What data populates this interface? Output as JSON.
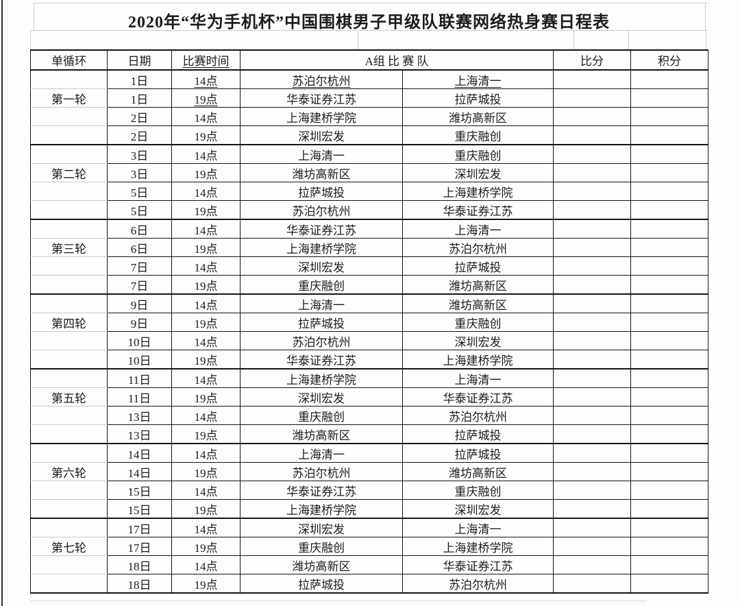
{
  "title": "2020年“华为手机杯”中国围棋男子甲级队联赛网络热身赛日程表",
  "headers": {
    "round": "单循环",
    "date": "日期",
    "time": "比赛时间",
    "group": "A组 比 赛 队",
    "score": "比分",
    "points": "积分"
  },
  "rounds": [
    {
      "name": "第一轮",
      "matches": [
        {
          "date": "1日",
          "time": "14点",
          "team_a": "苏泊尔杭州",
          "team_b": "上海清一",
          "score": "",
          "points": ""
        },
        {
          "date": "1日",
          "time": "19点",
          "team_a": "华泰证券江苏",
          "team_b": "拉萨城投",
          "score": "",
          "points": ""
        },
        {
          "date": "2日",
          "time": "14点",
          "team_a": "上海建桥学院",
          "team_b": "潍坊高新区",
          "score": "",
          "points": ""
        },
        {
          "date": "2日",
          "time": "19点",
          "team_a": "深圳宏发",
          "team_b": "重庆融创",
          "score": "",
          "points": ""
        }
      ]
    },
    {
      "name": "第二轮",
      "matches": [
        {
          "date": "3日",
          "time": "14点",
          "team_a": "上海清一",
          "team_b": "重庆融创",
          "score": "",
          "points": ""
        },
        {
          "date": "3日",
          "time": "19点",
          "team_a": "潍坊高新区",
          "team_b": "深圳宏发",
          "score": "",
          "points": ""
        },
        {
          "date": "5日",
          "time": "14点",
          "team_a": "拉萨城投",
          "team_b": "上海建桥学院",
          "score": "",
          "points": ""
        },
        {
          "date": "5日",
          "time": "19点",
          "team_a": "苏泊尔杭州",
          "team_b": "华泰证券江苏",
          "score": "",
          "points": ""
        }
      ]
    },
    {
      "name": "第三轮",
      "matches": [
        {
          "date": "6日",
          "time": "14点",
          "team_a": "华泰证券江苏",
          "team_b": "上海清一",
          "score": "",
          "points": ""
        },
        {
          "date": "6日",
          "time": "19点",
          "team_a": "上海建桥学院",
          "team_b": "苏泊尔杭州",
          "score": "",
          "points": ""
        },
        {
          "date": "7日",
          "time": "14点",
          "team_a": "深圳宏发",
          "team_b": "拉萨城投",
          "score": "",
          "points": ""
        },
        {
          "date": "7日",
          "time": "19点",
          "team_a": "重庆融创",
          "team_b": "潍坊高新区",
          "score": "",
          "points": ""
        }
      ]
    },
    {
      "name": "第四轮",
      "matches": [
        {
          "date": "9日",
          "time": "14点",
          "team_a": "上海清一",
          "team_b": "潍坊高新区",
          "score": "",
          "points": ""
        },
        {
          "date": "9日",
          "time": "19点",
          "team_a": "拉萨城投",
          "team_b": "重庆融创",
          "score": "",
          "points": ""
        },
        {
          "date": "10日",
          "time": "14点",
          "team_a": "苏泊尔杭州",
          "team_b": "深圳宏发",
          "score": "",
          "points": ""
        },
        {
          "date": "10日",
          "time": "19点",
          "team_a": "华泰证券江苏",
          "team_b": "上海建桥学院",
          "score": "",
          "points": ""
        }
      ]
    },
    {
      "name": "第五轮",
      "matches": [
        {
          "date": "11日",
          "time": "14点",
          "team_a": "上海建桥学院",
          "team_b": "上海清一",
          "score": "",
          "points": ""
        },
        {
          "date": "11日",
          "time": "19点",
          "team_a": "深圳宏发",
          "team_b": "华泰证券江苏",
          "score": "",
          "points": ""
        },
        {
          "date": "13日",
          "time": "14点",
          "team_a": "重庆融创",
          "team_b": "苏泊尔杭州",
          "score": "",
          "points": ""
        },
        {
          "date": "13日",
          "time": "19点",
          "team_a": "潍坊高新区",
          "team_b": "拉萨城投",
          "score": "",
          "points": ""
        }
      ]
    },
    {
      "name": "第六轮",
      "matches": [
        {
          "date": "14日",
          "time": "14点",
          "team_a": "上海清一",
          "team_b": "拉萨城投",
          "score": "",
          "points": ""
        },
        {
          "date": "14日",
          "time": "19点",
          "team_a": "苏泊尔杭州",
          "team_b": "潍坊高新区",
          "score": "",
          "points": ""
        },
        {
          "date": "15日",
          "time": "14点",
          "team_a": "华泰证券江苏",
          "team_b": "重庆融创",
          "score": "",
          "points": ""
        },
        {
          "date": "15日",
          "time": "19点",
          "team_a": "上海建桥学院",
          "team_b": "深圳宏发",
          "score": "",
          "points": ""
        }
      ]
    },
    {
      "name": "第七轮",
      "matches": [
        {
          "date": "17日",
          "time": "14点",
          "team_a": "深圳宏发",
          "team_b": "上海清一",
          "score": "",
          "points": ""
        },
        {
          "date": "17日",
          "time": "19点",
          "team_a": "重庆融创",
          "team_b": "上海建桥学院",
          "score": "",
          "points": ""
        },
        {
          "date": "18日",
          "time": "14点",
          "team_a": "潍坊高新区",
          "team_b": "华泰证券江苏",
          "score": "",
          "points": ""
        },
        {
          "date": "18日",
          "time": "19点",
          "team_a": "拉萨城投",
          "team_b": "苏泊尔杭州",
          "score": "",
          "points": ""
        }
      ]
    }
  ]
}
